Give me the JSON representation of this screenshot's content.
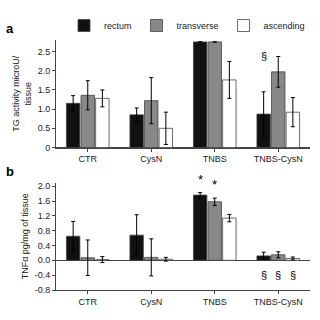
{
  "chart_data": [
    {
      "type": "bar",
      "title": "a",
      "y_label": "TG activity microU/\ntissue",
      "categories": [
        "CTR",
        "CysN",
        "TNBS",
        "TNBS-CysN"
      ],
      "series": [
        {
          "name": "rectum",
          "color": "#111111",
          "values": [
            1.15,
            0.85,
            2.75,
            0.87
          ],
          "errors": [
            0.2,
            0.18,
            0.0,
            0.58
          ]
        },
        {
          "name": "transverse",
          "color": "#888888",
          "values": [
            1.36,
            1.22,
            2.75,
            1.97
          ],
          "errors": [
            0.38,
            0.6,
            0.0,
            0.4
          ]
        },
        {
          "name": "ascending",
          "color": "#ffffff",
          "values": [
            1.28,
            0.5,
            1.76,
            0.92
          ],
          "errors": [
            0.22,
            0.42,
            0.48,
            0.38
          ]
        }
      ],
      "ylim": [
        0,
        2.8
      ],
      "yticks": [
        0,
        0.5,
        {
          "value": 1,
          "label": "1.0"
        },
        1.5,
        {
          "value": 2,
          "label": "2.0"
        },
        2.5
      ],
      "grid": false,
      "annotations": [
        {
          "text": "§",
          "category": "TNBS-CysN",
          "series": "rectum",
          "y": 2.18
        }
      ]
    },
    {
      "type": "bar",
      "title": "b",
      "y_label": "TNFα pg/mg of tissue",
      "categories": [
        "CTR",
        "CysN",
        "TNBS",
        "TNBS-CysN"
      ],
      "series": [
        {
          "name": "rectum",
          "color": "#111111",
          "values": [
            0.65,
            0.68,
            1.76,
            0.12
          ],
          "errors": [
            0.4,
            0.55,
            0.07,
            0.1
          ]
        },
        {
          "name": "transverse",
          "color": "#888888",
          "values": [
            0.07,
            0.08,
            1.58,
            0.15
          ],
          "errors": [
            0.48,
            0.5,
            0.1,
            0.08
          ]
        },
        {
          "name": "ascending",
          "color": "#ffffff",
          "values": [
            0.02,
            0.03,
            1.14,
            0.05
          ],
          "errors": [
            0.08,
            0.05,
            0.1,
            0.04
          ]
        }
      ],
      "ylim": [
        -0.8,
        2.1
      ],
      "yticks": [
        -0.8,
        -0.4,
        {
          "value": 0,
          "label": "0.0"
        },
        0.4,
        0.8,
        1.2,
        1.6,
        {
          "value": 2,
          "label": "2.0"
        }
      ],
      "grid": false,
      "legend": "top",
      "annotations": [
        {
          "text": "*",
          "category": "TNBS",
          "series": "rectum",
          "y": 1.93
        },
        {
          "text": "*",
          "category": "TNBS",
          "series": "transverse",
          "y": 1.78
        },
        {
          "text": "§",
          "category": "TNBS-CysN",
          "series": "rectum",
          "y": -0.18
        },
        {
          "text": "§",
          "category": "TNBS-CysN",
          "series": "transverse",
          "y": -0.18
        },
        {
          "text": "§",
          "category": "TNBS-CysN",
          "series": "ascending",
          "y": -0.18
        }
      ]
    }
  ]
}
